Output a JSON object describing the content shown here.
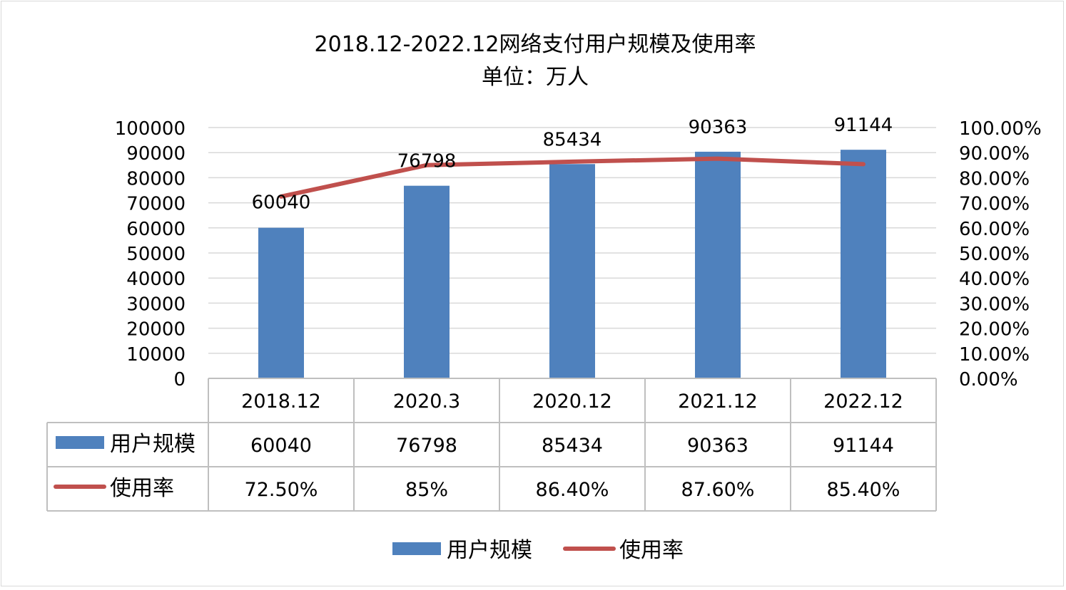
{
  "chart_data": {
    "type": "bar",
    "title": "2018.12-2022.12网络支付用户规模及使用率",
    "subtitle": "单位：万人",
    "categories": [
      "2018.12",
      "2020.3",
      "2020.12",
      "2021.12",
      "2022.12"
    ],
    "series": [
      {
        "name": "用户规模",
        "type": "bar",
        "axis": "left",
        "color": "#4f81bd",
        "values": [
          60040,
          76798,
          85434,
          90363,
          91144
        ],
        "labels": [
          "60040",
          "76798",
          "85434",
          "90363",
          "91144"
        ]
      },
      {
        "name": "使用率",
        "type": "line",
        "axis": "right",
        "color": "#c0504d",
        "values": [
          72.5,
          85,
          86.4,
          87.6,
          85.4
        ],
        "labels": [
          "72.50%",
          "85%",
          "86.40%",
          "87.60%",
          "85.40%"
        ]
      }
    ],
    "y_left": {
      "ylim": [
        0,
        100000
      ],
      "ticks": [
        "0",
        "10000",
        "20000",
        "30000",
        "40000",
        "50000",
        "60000",
        "70000",
        "80000",
        "90000",
        "100000"
      ]
    },
    "y_right": {
      "ylim": [
        0,
        100
      ],
      "ticks": [
        "0.00%",
        "10.00%",
        "20.00%",
        "30.00%",
        "40.00%",
        "50.00%",
        "60.00%",
        "70.00%",
        "80.00%",
        "90.00%",
        "100.00%"
      ]
    },
    "grid": true,
    "data_table": true,
    "legend": "bottom"
  }
}
